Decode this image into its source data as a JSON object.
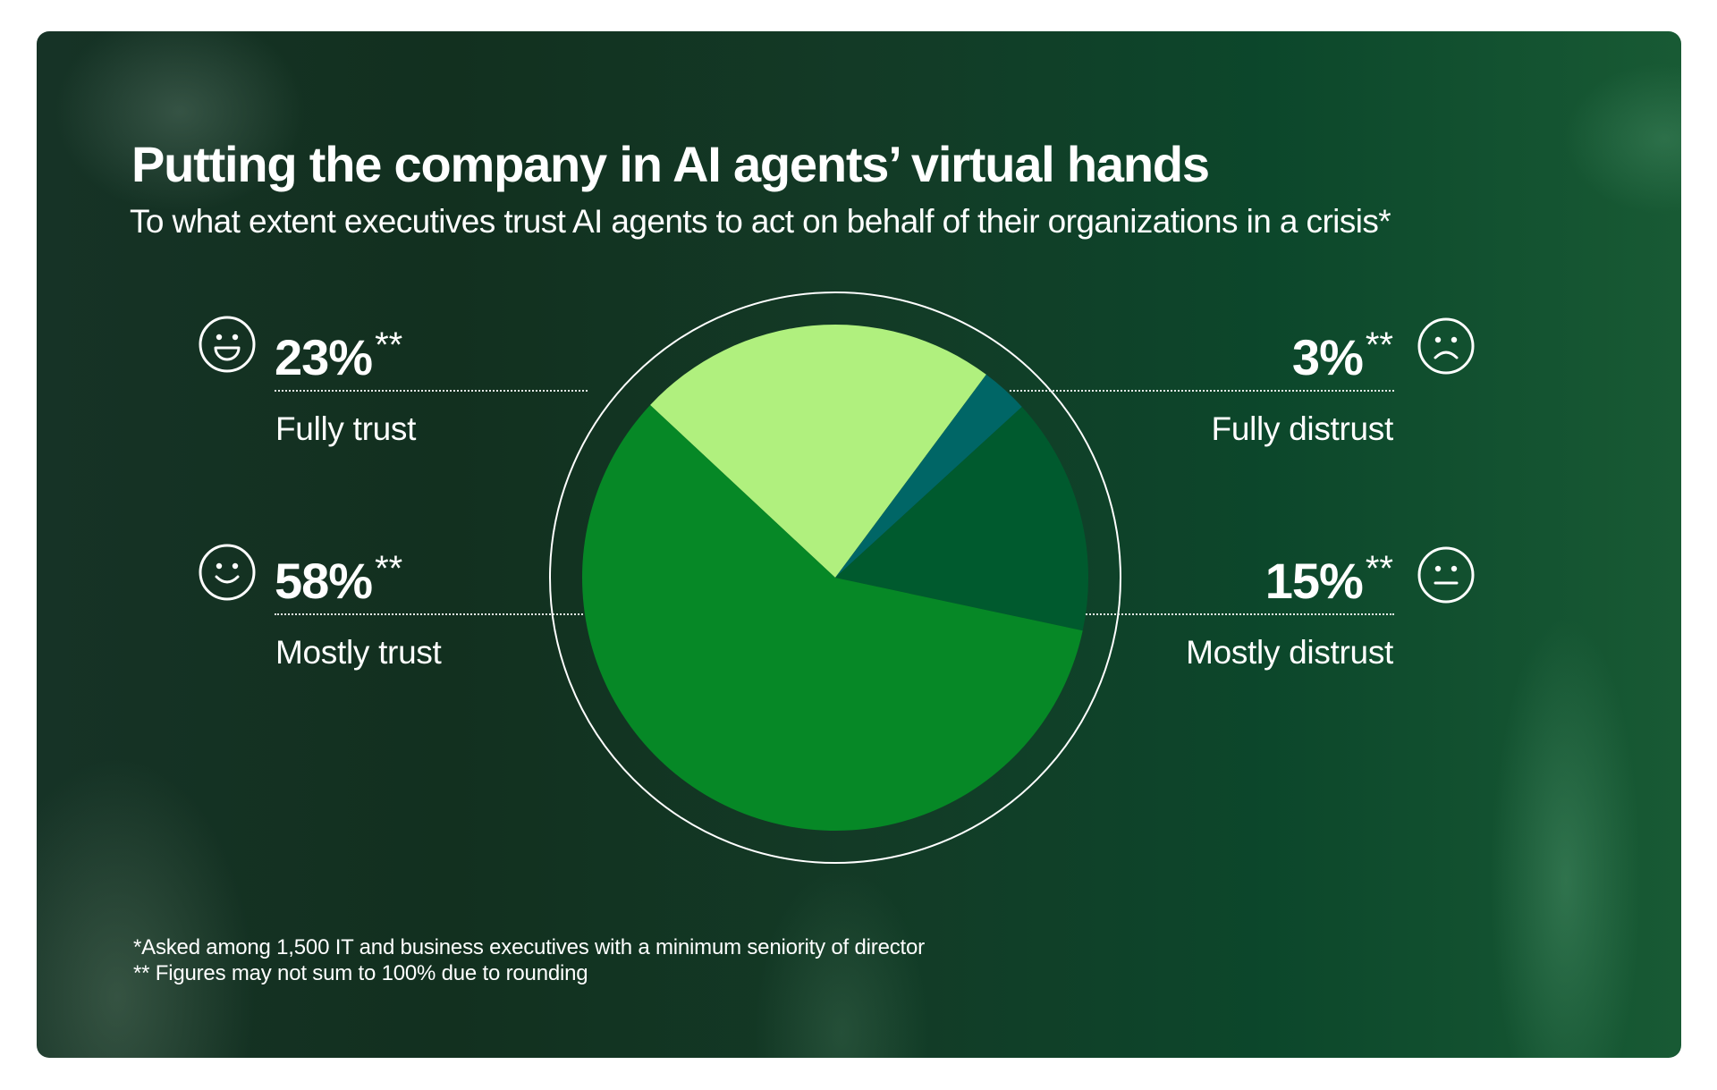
{
  "header": {
    "title": "Putting the company in AI agents’ virtual hands",
    "subtitle": "To what extent executives trust AI agents to act on behalf of their organizations in a crisis*"
  },
  "stats": {
    "fully_trust": {
      "value": "23%",
      "stars": "**",
      "label": "Fully trust",
      "icon": "grinning-face-icon"
    },
    "mostly_trust": {
      "value": "58%",
      "stars": "**",
      "label": "Mostly trust",
      "icon": "smiling-face-icon"
    },
    "fully_distrust": {
      "value": "3%",
      "stars": "**",
      "label": "Fully distrust",
      "icon": "frowning-face-icon"
    },
    "mostly_distrust": {
      "value": "15%",
      "stars": "**",
      "label": "Mostly distrust",
      "icon": "neutral-face-icon"
    }
  },
  "footnotes": {
    "line1": "*Asked among 1,500 IT and business executives with a minimum seniority of director",
    "line2": "** Figures may not sum to 100% due to rounding"
  },
  "colors": {
    "fully_trust": "#B0F07E",
    "fully_distrust": "#006666",
    "mostly_distrust": "#005A2E",
    "mostly_trust": "#068826",
    "text": "#FFFFFF"
  },
  "chart_data": {
    "type": "pie",
    "title": "Putting the company in AI agents’ virtual hands",
    "subtitle": "To what extent executives trust AI agents to act on behalf of their organizations in a crisis*",
    "categories": [
      "Fully trust",
      "Fully distrust",
      "Mostly distrust",
      "Mostly trust"
    ],
    "values": [
      23,
      3,
      15,
      58
    ],
    "unit": "%",
    "colors": [
      "#B0F07E",
      "#006666",
      "#005A2E",
      "#068826"
    ],
    "start_angle_deg": 313,
    "direction": "clockwise",
    "annotations": [
      "*Asked among 1,500 IT and business executives with a minimum seniority of director",
      "** Figures may not sum to 100% due to rounding"
    ],
    "legend": "labels placed at left (trust) and right (distrust) with face icons"
  }
}
